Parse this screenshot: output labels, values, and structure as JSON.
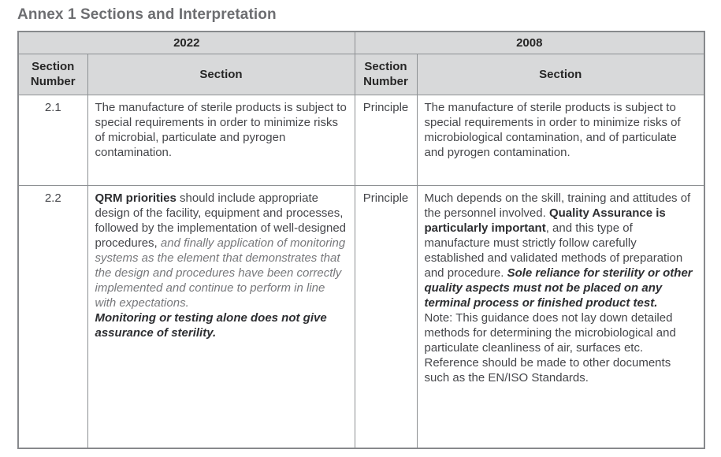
{
  "page": {
    "title": "Annex 1 Sections and Interpretation"
  },
  "table": {
    "year_headers": [
      "2022",
      "2008"
    ],
    "column_headers": [
      "Section Number",
      "Section",
      "Section Number",
      "Section"
    ],
    "rows": [
      {
        "left_number": "2.1",
        "left_section": [
          {
            "style": "regular",
            "text": "The manufacture of sterile products is subject to special requirements in order to minimize risks of microbial, particulate and pyrogen contamination."
          }
        ],
        "right_number": "Principle",
        "right_section": [
          {
            "style": "regular",
            "text": "The manufacture of sterile products is subject to special requirements in order to minimize risks of microbiological contamination, and of particulate and pyrogen contamination."
          }
        ]
      },
      {
        "left_number": "2.2",
        "left_section": [
          {
            "style": "bold",
            "text": "QRM priorities"
          },
          {
            "style": "regular",
            "text": " should include appropriate design of the facility, equipment and processes, followed by the implementation of well-designed procedures, "
          },
          {
            "style": "italic",
            "text": "and finally application of monitoring systems as the element that demonstrates that the design and procedures have been correctly implemented and continue to perform in line with expectations."
          },
          {
            "style": "break",
            "text": ""
          },
          {
            "style": "bold-italic",
            "text": "Monitoring or testing alone does not give assurance of sterility."
          }
        ],
        "right_number": "Principle",
        "right_section": [
          {
            "style": "regular",
            "text": "Much depends on the skill, training and attitudes of the personnel involved. "
          },
          {
            "style": "bold",
            "text": "Quality Assurance is particularly important"
          },
          {
            "style": "regular",
            "text": ", and this type of manufacture must strictly follow carefully established and validated methods of preparation and procedure. "
          },
          {
            "style": "bold-italic",
            "text": "Sole reliance for sterility or other quality aspects must not be placed on any terminal process or finished product test."
          },
          {
            "style": "break",
            "text": ""
          },
          {
            "style": "regular",
            "text": "Note: This guidance does not lay down detailed methods for determining the microbiological and particulate cleanliness of air, surfaces etc. Reference should be made to other documents such as the EN/ISO Standards."
          }
        ]
      }
    ],
    "colors": {
      "header_background": "#d8d9da",
      "table_border": "#8d9093",
      "row_divider_dashed": "#b4b6b8",
      "title_text": "#6d6e71",
      "header_text": "#262626",
      "body_text": "#45464a",
      "italic_text": "#77787b",
      "emphasis_text": "#2d2e31"
    }
  }
}
